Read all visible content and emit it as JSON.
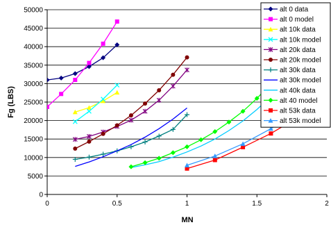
{
  "chart_data": {
    "type": "line",
    "xlabel": "MN",
    "ylabel": "Fg (LBS)",
    "xlim": [
      0,
      2
    ],
    "ylim": [
      0,
      50000
    ],
    "x_ticks": [
      0,
      0.5,
      1,
      1.5,
      2
    ],
    "x_tick_labels": [
      "0",
      "0.5",
      "1",
      "1.5",
      "2"
    ],
    "y_ticks": [
      0,
      5000,
      10000,
      15000,
      20000,
      25000,
      30000,
      35000,
      40000,
      45000,
      50000
    ],
    "y_tick_labels": [
      "0",
      "5000",
      "10000",
      "15000",
      "20000",
      "25000",
      "30000",
      "35000",
      "40000",
      "45000",
      "50000"
    ],
    "grid": "horizontal",
    "legend_position": "right",
    "series": [
      {
        "name": "alt 0 data",
        "color": "#000080",
        "marker": "diamond",
        "points": [
          [
            0,
            31000
          ],
          [
            0.1,
            31500
          ],
          [
            0.2,
            32700
          ],
          [
            0.3,
            34600
          ],
          [
            0.4,
            37000
          ],
          [
            0.5,
            40500
          ]
        ]
      },
      {
        "name": "alt 0 model",
        "color": "#FF00FF",
        "marker": "square",
        "points": [
          [
            0,
            23700
          ],
          [
            0.1,
            27200
          ],
          [
            0.2,
            31000
          ],
          [
            0.3,
            35600
          ],
          [
            0.4,
            40800
          ],
          [
            0.5,
            46800
          ]
        ]
      },
      {
        "name": "alt 10k data",
        "color": "#FFFF00",
        "marker": "triangle",
        "points": [
          [
            0.2,
            22300
          ],
          [
            0.3,
            23500
          ],
          [
            0.4,
            25300
          ],
          [
            0.5,
            27600
          ]
        ]
      },
      {
        "name": "alt 10k model",
        "color": "#00FFFF",
        "marker": "x",
        "points": [
          [
            0.2,
            19700
          ],
          [
            0.3,
            22500
          ],
          [
            0.4,
            25800
          ],
          [
            0.5,
            29600
          ]
        ]
      },
      {
        "name": "alt 20k data",
        "color": "#800080",
        "marker": "star",
        "points": [
          [
            0.2,
            14900
          ],
          [
            0.3,
            15700
          ],
          [
            0.4,
            16900
          ],
          [
            0.5,
            18400
          ],
          [
            0.6,
            20100
          ],
          [
            0.7,
            22500
          ],
          [
            0.8,
            25500
          ],
          [
            0.9,
            29300
          ],
          [
            1.0,
            33700
          ]
        ]
      },
      {
        "name": "alt 20k model",
        "color": "#800000",
        "marker": "circle",
        "points": [
          [
            0.2,
            12400
          ],
          [
            0.3,
            14300
          ],
          [
            0.4,
            16400
          ],
          [
            0.5,
            18700
          ],
          [
            0.6,
            21400
          ],
          [
            0.7,
            24600
          ],
          [
            0.8,
            28200
          ],
          [
            0.9,
            32400
          ],
          [
            1.0,
            37100
          ]
        ]
      },
      {
        "name": "alt 30k data",
        "color": "#008080",
        "marker": "plus",
        "points": [
          [
            0.2,
            9500
          ],
          [
            0.3,
            10100
          ],
          [
            0.4,
            10900
          ],
          [
            0.5,
            11800
          ],
          [
            0.6,
            12900
          ],
          [
            0.7,
            14200
          ],
          [
            0.8,
            15800
          ],
          [
            0.9,
            17600
          ],
          [
            1.0,
            21600
          ]
        ]
      },
      {
        "name": "alt 30k model",
        "color": "#0000FF",
        "marker": "none",
        "points": [
          [
            0.2,
            7600
          ],
          [
            0.3,
            8800
          ],
          [
            0.4,
            10200
          ],
          [
            0.5,
            11800
          ],
          [
            0.6,
            13500
          ],
          [
            0.7,
            15500
          ],
          [
            0.8,
            17800
          ],
          [
            0.9,
            20400
          ],
          [
            1.0,
            23400
          ]
        ]
      },
      {
        "name": "alt 40k data",
        "color": "#00CCFF",
        "marker": "none",
        "points": [
          [
            0.6,
            7300
          ],
          [
            0.7,
            8000
          ],
          [
            0.8,
            8900
          ],
          [
            0.9,
            10100
          ],
          [
            1.0,
            11500
          ],
          [
            1.1,
            13100
          ],
          [
            1.2,
            15000
          ],
          [
            1.3,
            17300
          ],
          [
            1.4,
            19900
          ],
          [
            1.5,
            23000
          ],
          [
            1.6,
            26500
          ],
          [
            1.7,
            30500
          ],
          [
            1.8,
            35000
          ]
        ]
      },
      {
        "name": "alt 40 model",
        "color": "#00FF00",
        "marker": "diamond",
        "points": [
          [
            0.6,
            7500
          ],
          [
            0.7,
            8600
          ],
          [
            0.8,
            9800
          ],
          [
            0.9,
            11300
          ],
          [
            1.0,
            12900
          ],
          [
            1.1,
            14800
          ],
          [
            1.2,
            17000
          ],
          [
            1.3,
            19600
          ],
          [
            1.4,
            22500
          ],
          [
            1.5,
            26000
          ],
          [
            1.6,
            30000
          ],
          [
            1.7,
            34500
          ],
          [
            1.8,
            39500
          ]
        ]
      },
      {
        "name": "alt 53k data",
        "color": "#FF0000",
        "marker": "square",
        "points": [
          [
            1.0,
            7000
          ],
          [
            1.2,
            9300
          ],
          [
            1.4,
            12800
          ],
          [
            1.6,
            16500
          ],
          [
            1.8,
            21000
          ]
        ]
      },
      {
        "name": "alt 53k model",
        "color": "#3399FF",
        "marker": "triangle",
        "points": [
          [
            1.0,
            7900
          ],
          [
            1.2,
            10400
          ],
          [
            1.4,
            13700
          ],
          [
            1.6,
            17800
          ],
          [
            1.8,
            23000
          ]
        ]
      }
    ]
  }
}
